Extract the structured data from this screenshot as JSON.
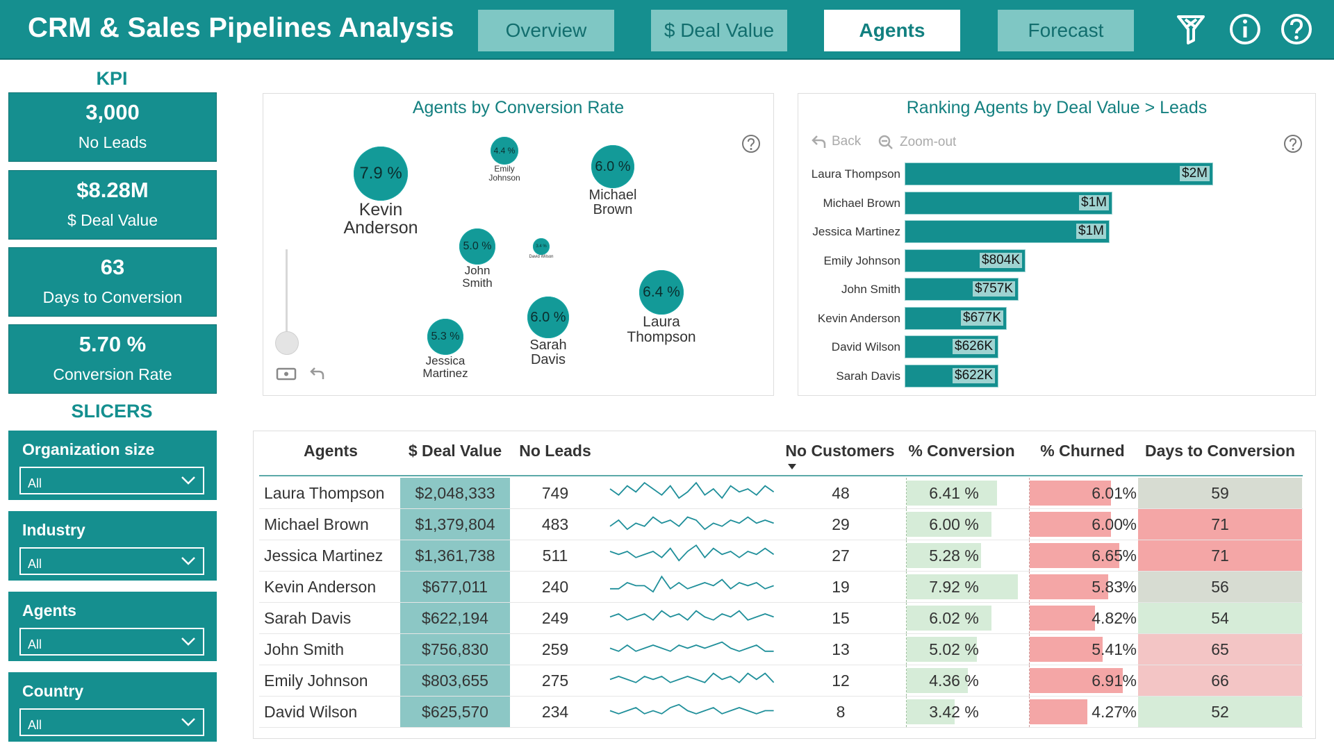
{
  "header": {
    "title": "CRM & Sales Pipelines Analysis",
    "tabs": [
      {
        "label": "Overview",
        "active": false
      },
      {
        "label": "$ Deal Value",
        "active": false
      },
      {
        "label": "Agents",
        "active": true
      },
      {
        "label": "Forecast",
        "active": false
      }
    ],
    "icons": [
      "filter-clear-icon",
      "info-icon",
      "help-icon"
    ]
  },
  "kpi": {
    "title": "KPI",
    "cards": [
      {
        "value": "3,000",
        "label": "No Leads"
      },
      {
        "value": "$8.28M",
        "label": "$ Deal Value"
      },
      {
        "value": "63",
        "label": "Days to Conversion"
      },
      {
        "value": "5.70 %",
        "label": "Conversion Rate"
      }
    ]
  },
  "slicers": {
    "title": "SLICERS",
    "items": [
      {
        "label": "Organization size",
        "value": "All"
      },
      {
        "label": "Industry",
        "value": "All"
      },
      {
        "label": "Agents",
        "value": "All"
      },
      {
        "label": "Country",
        "value": "All"
      }
    ]
  },
  "conversion_chart": {
    "title": "Agents by Conversion Rate",
    "bubbles": [
      {
        "name": "Kevin Anderson",
        "line1": "Kevin",
        "line2": "Anderson",
        "rate": "7.9 %"
      },
      {
        "name": "Emily Johnson",
        "line1": "Emily",
        "line2": "Johnson",
        "rate": "4.4 %"
      },
      {
        "name": "Michael Brown",
        "line1": "Michael",
        "line2": "Brown",
        "rate": "6.0 %"
      },
      {
        "name": "John Smith",
        "line1": "John",
        "line2": "Smith",
        "rate": "5.0 %"
      },
      {
        "name": "David Wilson",
        "line1": "David",
        "line2": "Wilson",
        "rate": "3.4 %"
      },
      {
        "name": "Laura Thompson",
        "line1": "Laura",
        "line2": "Thompson",
        "rate": "6.4 %"
      },
      {
        "name": "Sarah Davis",
        "line1": "Sarah",
        "line2": "Davis",
        "rate": "6.0 %"
      },
      {
        "name": "Jessica Martinez",
        "line1": "Jessica",
        "line2": "Martinez",
        "rate": "5.3 %"
      }
    ]
  },
  "ranking_chart": {
    "title": "Ranking Agents by Deal Value",
    "drill_separator": ">",
    "drill_level": "Leads",
    "back_label": "Back",
    "zoom_label": "Zoom-out"
  },
  "chart_data": {
    "type": "bar",
    "orientation": "horizontal",
    "categories": [
      "Laura Thompson",
      "Michael Brown",
      "Jessica Martinez",
      "Emily Johnson",
      "John Smith",
      "Kevin Anderson",
      "David Wilson",
      "Sarah Davis"
    ],
    "values": [
      2048333,
      1379804,
      1361738,
      803655,
      756830,
      677011,
      625570,
      622194
    ],
    "data_labels": [
      "$2M",
      "$1M",
      "$1M",
      "$804K",
      "$757K",
      "$677K",
      "$626K",
      "$622K"
    ],
    "title": "Ranking Agents by Deal Value",
    "xlim": [
      0,
      2050000
    ]
  },
  "table": {
    "columns": [
      "Agents",
      "$ Deal Value",
      "No Leads",
      "",
      "No Customers",
      "% Conversion",
      "% Churned",
      "Days to Conversion"
    ],
    "rows": [
      {
        "agent": "Laura Thompson",
        "deal": "$2,048,333",
        "leads": "749",
        "customers": "48",
        "conversion": "6.41 %",
        "conv_frac": 0.81,
        "churned_num": "6.01",
        "churned_unit": "%",
        "churn_frac": 0.87,
        "days": "59",
        "days_color": "#d7dcd2",
        "spark": [
          5,
          3,
          6,
          4,
          7,
          5,
          3,
          6,
          2,
          4,
          7,
          3,
          5,
          2,
          6,
          4,
          5,
          3,
          6,
          4
        ]
      },
      {
        "agent": "Michael Brown",
        "deal": "$1,379,804",
        "leads": "483",
        "customers": "29",
        "conversion": "6.00 %",
        "conv_frac": 0.76,
        "churned_num": "6.00",
        "churned_unit": "%",
        "churn_frac": 0.87,
        "days": "71",
        "days_color": "#f4a6a6",
        "spark": [
          3,
          5,
          2,
          4,
          3,
          6,
          4,
          5,
          3,
          6,
          5,
          2,
          4,
          3,
          5,
          4,
          6,
          4,
          5,
          4
        ]
      },
      {
        "agent": "Jessica Martinez",
        "deal": "$1,361,738",
        "leads": "511",
        "customers": "27",
        "conversion": "5.28 %",
        "conv_frac": 0.67,
        "churned_num": "6.65",
        "churned_unit": "%",
        "churn_frac": 0.96,
        "days": "71",
        "days_color": "#f4a6a6",
        "spark": [
          5,
          4,
          5,
          3,
          4,
          5,
          3,
          6,
          2,
          5,
          7,
          3,
          6,
          4,
          5,
          3,
          5,
          4,
          6,
          4
        ]
      },
      {
        "agent": "Kevin Anderson",
        "deal": "$677,011",
        "leads": "240",
        "customers": "19",
        "conversion": "7.92 %",
        "conv_frac": 1.0,
        "churned_num": "5.83",
        "churned_unit": "%",
        "churn_frac": 0.84,
        "days": "56",
        "days_color": "#d7dcd2",
        "spark": [
          3,
          3,
          5,
          4,
          4,
          2,
          7,
          3,
          5,
          3,
          4,
          5,
          4,
          6,
          3,
          5,
          4,
          5,
          3,
          4
        ]
      },
      {
        "agent": "Sarah Davis",
        "deal": "$622,194",
        "leads": "249",
        "customers": "15",
        "conversion": "6.02 %",
        "conv_frac": 0.76,
        "churned_num": "4.82",
        "churned_unit": "%",
        "churn_frac": 0.7,
        "days": "54",
        "days_color": "#d6ecd8",
        "spark": [
          4,
          5,
          3,
          4,
          5,
          3,
          6,
          4,
          5,
          3,
          6,
          4,
          3,
          5,
          4,
          6,
          3,
          4,
          5,
          4
        ]
      },
      {
        "agent": "John Smith",
        "deal": "$756,830",
        "leads": "259",
        "customers": "13",
        "conversion": "5.02 %",
        "conv_frac": 0.63,
        "churned_num": "5.41",
        "churned_unit": "%",
        "churn_frac": 0.78,
        "days": "65",
        "days_color": "#f3c5c5",
        "spark": [
          4,
          3,
          5,
          3,
          4,
          5,
          4,
          3,
          5,
          4,
          5,
          4,
          5,
          6,
          4,
          3,
          4,
          5,
          3,
          3
        ]
      },
      {
        "agent": "Emily Johnson",
        "deal": "$803,655",
        "leads": "275",
        "customers": "12",
        "conversion": "4.36 %",
        "conv_frac": 0.55,
        "churned_num": "6.91",
        "churned_unit": "%",
        "churn_frac": 1.0,
        "days": "66",
        "days_color": "#f3c5c5",
        "spark": [
          4,
          5,
          4,
          3,
          5,
          4,
          5,
          3,
          4,
          5,
          4,
          3,
          6,
          4,
          5,
          3,
          6,
          4,
          6,
          3
        ]
      },
      {
        "agent": "David Wilson",
        "deal": "$625,570",
        "leads": "234",
        "customers": "8",
        "conversion": "3.42 %",
        "conv_frac": 0.43,
        "churned_num": "4.27",
        "churned_unit": "%",
        "churn_frac": 0.62,
        "days": "52",
        "days_color": "#d6ecd8",
        "spark": [
          4,
          3,
          4,
          5,
          3,
          4,
          3,
          5,
          6,
          4,
          3,
          4,
          5,
          3,
          4,
          5,
          4,
          3,
          4,
          4
        ]
      }
    ]
  },
  "colors": {
    "teal": "#158f8f",
    "deal_cell": "#8cc7c5",
    "conv_bar": "#d6ecd8",
    "churn_bar": "#f4a6a6"
  }
}
